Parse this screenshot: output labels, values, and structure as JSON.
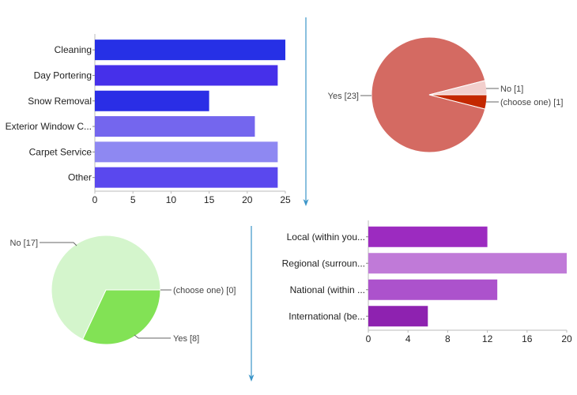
{
  "chart_data": [
    {
      "type": "bar",
      "orientation": "horizontal",
      "title": "",
      "categories": [
        "Cleaning",
        "Day Portering",
        "Snow Removal",
        "Exterior Window C...",
        "Carpet Service",
        "Other"
      ],
      "values": [
        25,
        24,
        15,
        21,
        24,
        24
      ],
      "colors": [
        "#2630e6",
        "#4630ea",
        "#2a2ee6",
        "#7466ee",
        "#8e88f2",
        "#5a48ee"
      ],
      "xlim": [
        0,
        25
      ],
      "xticks": [
        "0",
        "5",
        "10",
        "15",
        "20",
        "25"
      ],
      "xlabel": "",
      "ylabel": "",
      "grid": false,
      "legend": "none"
    },
    {
      "type": "pie",
      "title": "",
      "slices": [
        {
          "label": "Yes [23]",
          "name": "Yes",
          "value": 23,
          "color": "#d46a62"
        },
        {
          "label": "No [1]",
          "name": "No",
          "value": 1,
          "color": "#f2cfcd"
        },
        {
          "label": "(choose one) [1]",
          "name": "(choose one)",
          "value": 1,
          "color": "#c42800"
        }
      ],
      "legend": "labeled"
    },
    {
      "type": "pie",
      "title": "",
      "slices": [
        {
          "label": "No [17]",
          "name": "No",
          "value": 17,
          "color": "#d4f5cc"
        },
        {
          "label": "Yes [8]",
          "name": "Yes",
          "value": 8,
          "color": "#82e255"
        },
        {
          "label": "(choose one) [0]",
          "name": "(choose one)",
          "value": 0,
          "color": "#4aa82a"
        }
      ],
      "legend": "labeled"
    },
    {
      "type": "bar",
      "orientation": "horizontal",
      "title": "",
      "categories": [
        "Local (within you...",
        "Regional (surroun...",
        "National (within ...",
        "International (be..."
      ],
      "values": [
        12,
        20,
        13,
        6
      ],
      "colors": [
        "#9c2bc0",
        "#c07ad8",
        "#ac52cc",
        "#8e22b0"
      ],
      "xlim": [
        0,
        20
      ],
      "xticks": [
        "0",
        "4",
        "8",
        "12",
        "16",
        "20"
      ],
      "xlabel": "",
      "ylabel": "",
      "grid": false,
      "legend": "none"
    }
  ],
  "arrows": [
    {
      "color": "#3b95c8"
    },
    {
      "color": "#3b95c8"
    }
  ]
}
